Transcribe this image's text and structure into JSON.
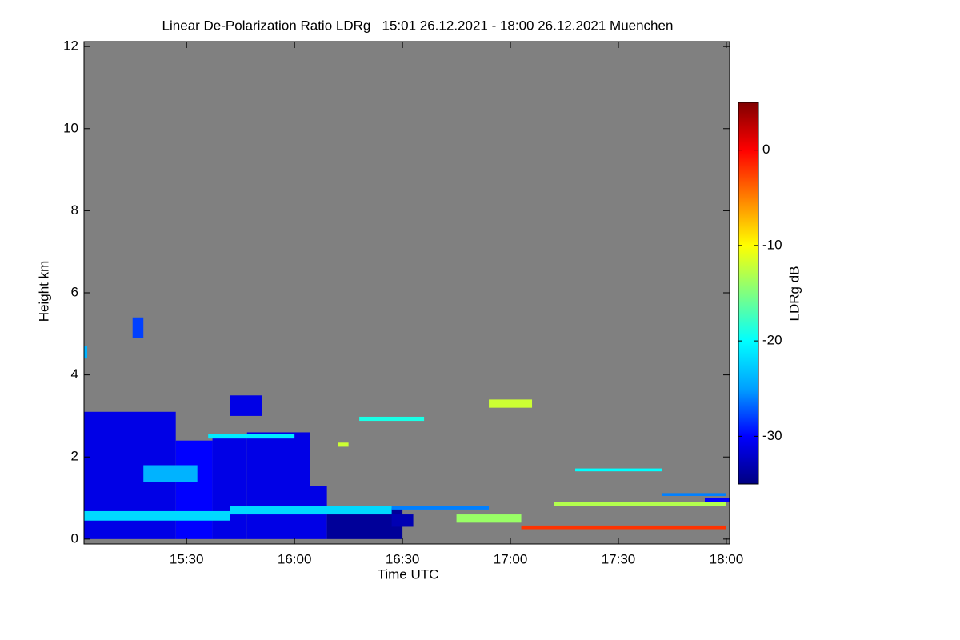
{
  "chart_data": {
    "type": "heatmap",
    "title": "Linear De-Polarization Ratio LDRg   15:01 26.12.2021 - 18:00 26.12.2021 Muenchen",
    "x_label": "Time UTC",
    "y_label": "Height km",
    "colorbar_label": "LDRg dB",
    "background_color": "#808080",
    "xlim": [
      15.025,
      18.015
    ],
    "xticks": [
      {
        "value": 15.5,
        "label": "15:30"
      },
      {
        "value": 16.0,
        "label": "16:00"
      },
      {
        "value": 16.5,
        "label": "16:30"
      },
      {
        "value": 17.0,
        "label": "17:00"
      },
      {
        "value": 17.5,
        "label": "17:30"
      },
      {
        "value": 18.0,
        "label": "18:00"
      }
    ],
    "ylim": [
      -0.12,
      12.12
    ],
    "yticks": [
      0,
      2,
      4,
      6,
      8,
      10,
      12
    ],
    "clim": [
      -35,
      5
    ],
    "cticks": [
      0,
      -10,
      -20,
      -30
    ],
    "colormap": [
      "#000080",
      "#0000ff",
      "#00a0ff",
      "#00ffff",
      "#80ff80",
      "#ffff00",
      "#ff8000",
      "#ff0000",
      "#800000"
    ],
    "patches": [
      {
        "x": [
          15.025,
          15.45
        ],
        "y": [
          0,
          3.1
        ],
        "value": -31
      },
      {
        "x": [
          15.45,
          15.62
        ],
        "y": [
          0,
          2.4
        ],
        "value": -30
      },
      {
        "x": [
          15.62,
          15.78
        ],
        "y": [
          0,
          2.5
        ],
        "value": -31
      },
      {
        "x": [
          15.78,
          16.07
        ],
        "y": [
          0,
          2.6
        ],
        "value": -31
      },
      {
        "x": [
          15.7,
          15.85
        ],
        "y": [
          3.0,
          3.5
        ],
        "value": -31
      },
      {
        "x": [
          16.07,
          16.15
        ],
        "y": [
          0,
          1.3
        ],
        "value": -31
      },
      {
        "x": [
          16.15,
          16.5
        ],
        "y": [
          0,
          0.75
        ],
        "value": -34
      },
      {
        "x": [
          15.025,
          15.7
        ],
        "y": [
          0.45,
          0.68
        ],
        "value": -22
      },
      {
        "x": [
          15.7,
          16.45
        ],
        "y": [
          0.6,
          0.8
        ],
        "value": -22
      },
      {
        "x": [
          15.3,
          15.55
        ],
        "y": [
          1.4,
          1.8
        ],
        "value": -24
      },
      {
        "x": [
          16.45,
          16.9
        ],
        "y": [
          0.72,
          0.8
        ],
        "value": -26
      },
      {
        "x": [
          16.45,
          16.55
        ],
        "y": [
          0.3,
          0.6
        ],
        "value": -33
      },
      {
        "x": [
          16.3,
          16.6
        ],
        "y": [
          2.88,
          2.98
        ],
        "value": -19
      },
      {
        "x": [
          16.2,
          16.25
        ],
        "y": [
          2.25,
          2.35
        ],
        "value": -12
      },
      {
        "x": [
          15.6,
          16.0
        ],
        "y": [
          2.45,
          2.55
        ],
        "value": -21
      },
      {
        "x": [
          17.3,
          17.7
        ],
        "y": [
          1.65,
          1.72
        ],
        "value": -20
      },
      {
        "x": [
          17.05,
          18.0
        ],
        "y": [
          0.24,
          0.33
        ],
        "value": -2
      },
      {
        "x": [
          17.2,
          18.0
        ],
        "y": [
          0.8,
          0.9
        ],
        "value": -13
      },
      {
        "x": [
          17.7,
          18.0
        ],
        "y": [
          1.05,
          1.12
        ],
        "value": -26
      },
      {
        "x": [
          16.9,
          17.1
        ],
        "y": [
          3.2,
          3.4
        ],
        "value": -12
      },
      {
        "x": [
          15.025,
          15.04
        ],
        "y": [
          4.4,
          4.7
        ],
        "value": -24
      },
      {
        "x": [
          15.25,
          15.3
        ],
        "y": [
          4.9,
          5.4
        ],
        "value": -28
      },
      {
        "x": [
          17.9,
          18.015
        ],
        "y": [
          0.9,
          1.0
        ],
        "value": -30
      },
      {
        "x": [
          16.75,
          17.05
        ],
        "y": [
          0.4,
          0.6
        ],
        "value": -14
      }
    ]
  }
}
